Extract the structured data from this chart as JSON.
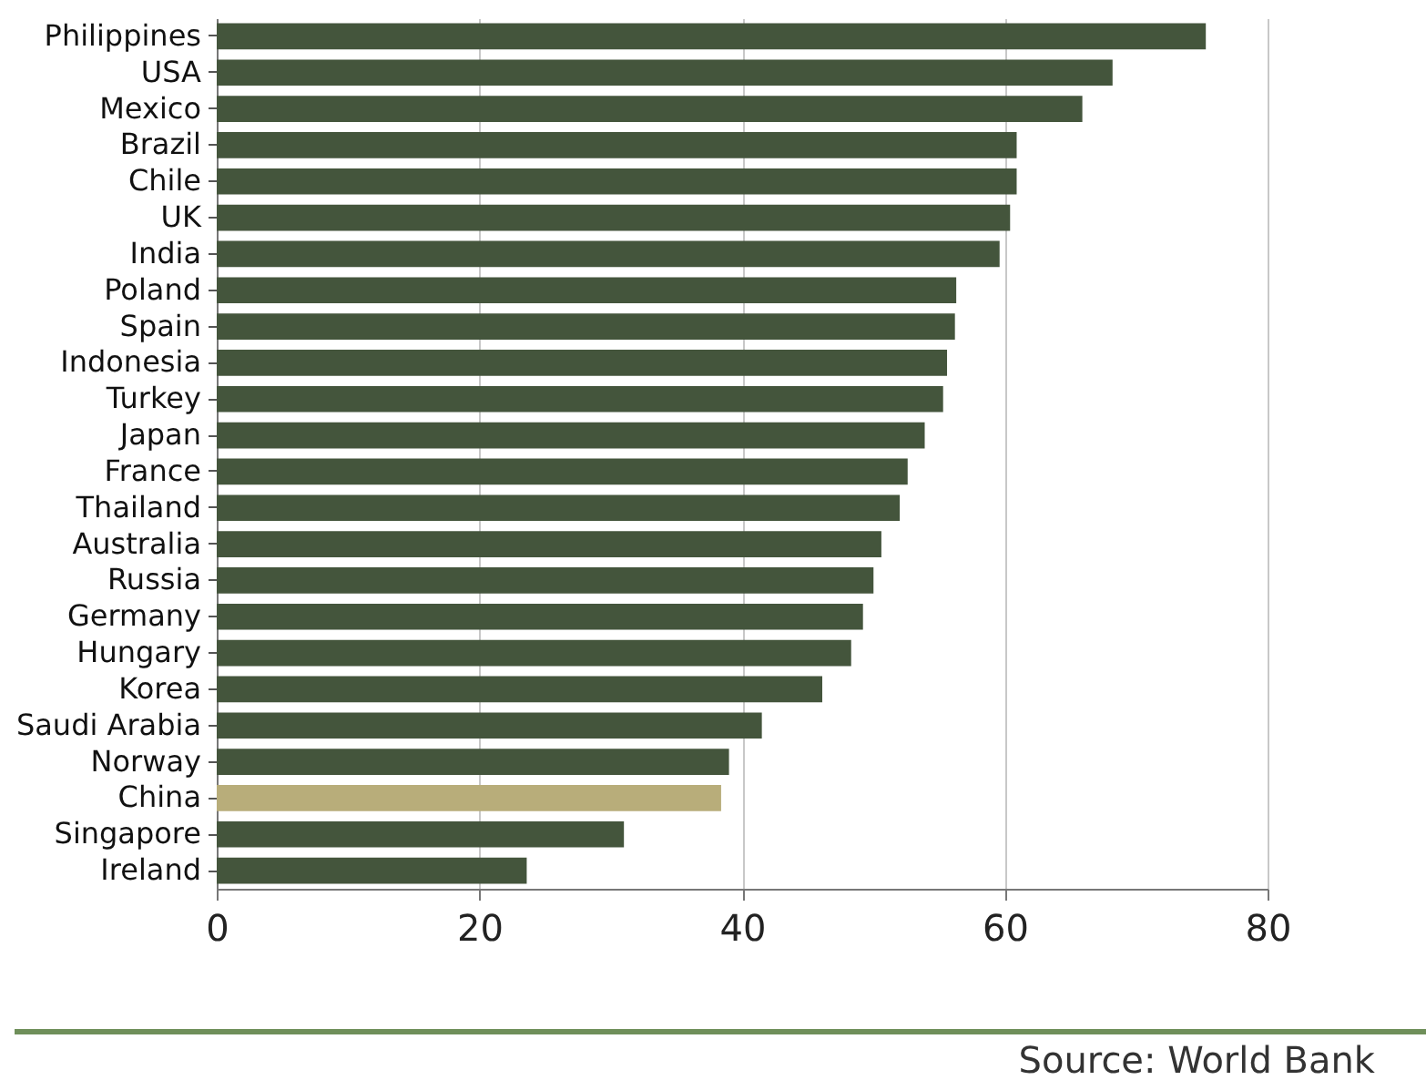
{
  "chart_data": {
    "type": "bar",
    "orientation": "horizontal",
    "categories": [
      "Philippines",
      "USA",
      "Mexico",
      "Brazil",
      "Chile",
      "UK",
      "India",
      "Poland",
      "Spain",
      "Indonesia",
      "Turkey",
      "Japan",
      "France",
      "Thailand",
      "Australia",
      "Russia",
      "Germany",
      "Hungary",
      "Korea",
      "Saudi Arabia",
      "Norway",
      "China",
      "Singapore",
      "Ireland"
    ],
    "values": [
      75.3,
      68.2,
      65.9,
      60.9,
      60.9,
      60.4,
      59.6,
      56.3,
      56.2,
      55.6,
      55.3,
      53.9,
      52.6,
      52.0,
      50.6,
      50.0,
      49.2,
      48.3,
      46.1,
      41.5,
      39.0,
      38.4,
      31.0,
      23.6
    ],
    "colors": [
      "#44553c",
      "#44553c",
      "#44553c",
      "#44553c",
      "#44553c",
      "#44553c",
      "#44553c",
      "#44553c",
      "#44553c",
      "#44553c",
      "#44553c",
      "#44553c",
      "#44553c",
      "#44553c",
      "#44553c",
      "#44553c",
      "#44553c",
      "#44553c",
      "#44553c",
      "#44553c",
      "#44553c",
      "#b8ad7a",
      "#44553c",
      "#44553c"
    ],
    "xlim": [
      0,
      80
    ],
    "xticks": [
      0,
      20,
      40,
      60,
      80
    ],
    "grid": "x",
    "annotations": [
      "Source: World Bank"
    ]
  }
}
